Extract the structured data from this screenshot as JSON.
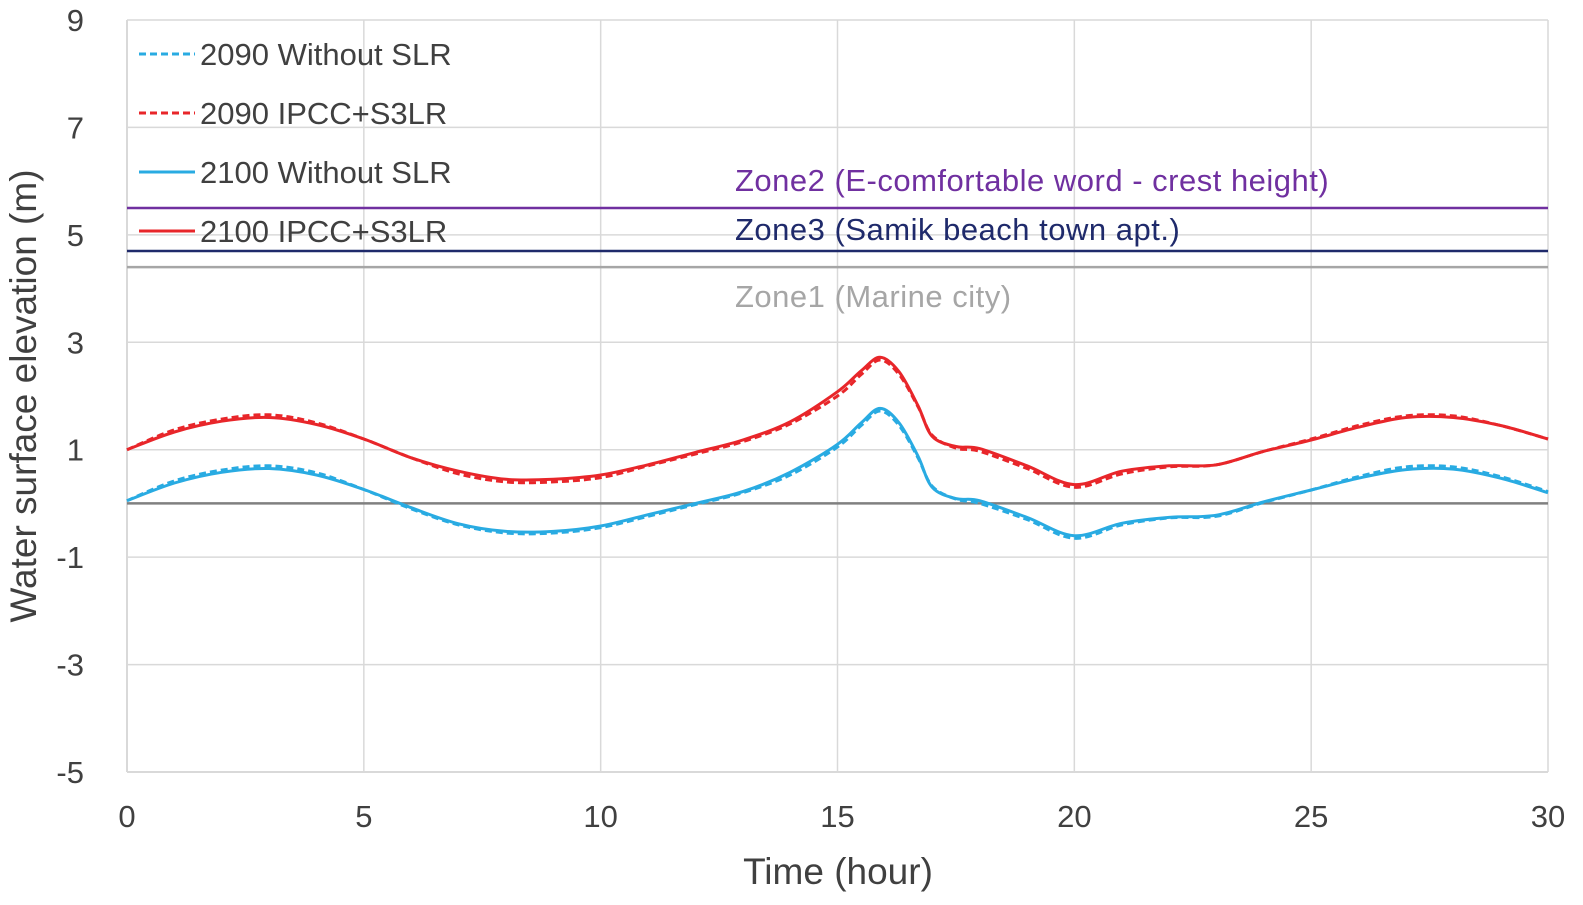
{
  "colors": {
    "cyan": "#29abe2",
    "red": "#e8262a",
    "purple": "#7030a0",
    "navy": "#1f2a6b",
    "gray_zone": "#a6a6a6",
    "baseline": "#808080",
    "grid": "#d9d9d9",
    "text": "#404040"
  },
  "chart_data": {
    "type": "line",
    "xlabel": "Time (hour)",
    "ylabel": "Water surface elevation (m)",
    "xlim": [
      0,
      30
    ],
    "ylim": [
      -5,
      9
    ],
    "xticks": [
      0,
      5,
      10,
      15,
      20,
      25,
      30
    ],
    "yticks": [
      -5,
      -3,
      -1,
      1,
      3,
      5,
      7,
      9
    ],
    "grid": true,
    "legend_position": "top-left",
    "series": [
      {
        "name": "2090 Without SLR",
        "style": "dashed",
        "color": "#29abe2",
        "x": [
          0,
          1,
          2,
          3,
          4,
          5,
          6,
          7,
          8,
          9,
          10,
          11,
          12,
          13,
          14,
          15,
          15.5,
          15.9,
          16.3,
          16.7,
          17,
          17.5,
          18,
          19,
          20,
          21,
          22,
          23,
          24,
          25,
          26,
          27,
          28,
          29,
          30
        ],
        "y": [
          0.05,
          0.42,
          0.62,
          0.7,
          0.57,
          0.26,
          -0.1,
          -0.4,
          -0.55,
          -0.55,
          -0.45,
          -0.24,
          -0.02,
          0.2,
          0.53,
          1.05,
          1.45,
          1.72,
          1.45,
          0.85,
          0.32,
          0.08,
          0.0,
          -0.3,
          -0.65,
          -0.4,
          -0.27,
          -0.24,
          0.02,
          0.25,
          0.5,
          0.68,
          0.68,
          0.5,
          0.22
        ]
      },
      {
        "name": "2090 IPCC+S3LR",
        "style": "dashed",
        "color": "#e8262a",
        "x": [
          0,
          1,
          2,
          3,
          4,
          5,
          6,
          7,
          8,
          9,
          10,
          11,
          12,
          13,
          14,
          15,
          15.5,
          15.9,
          16.3,
          16.7,
          17,
          17.5,
          18,
          19,
          20,
          21,
          22,
          23,
          24,
          25,
          26,
          27,
          28,
          29,
          30
        ],
        "y": [
          1.0,
          1.37,
          1.57,
          1.65,
          1.5,
          1.2,
          0.85,
          0.55,
          0.4,
          0.4,
          0.48,
          0.7,
          0.92,
          1.15,
          1.48,
          2.0,
          2.4,
          2.67,
          2.4,
          1.8,
          1.27,
          1.03,
          0.97,
          0.65,
          0.3,
          0.55,
          0.68,
          0.72,
          0.97,
          1.2,
          1.45,
          1.63,
          1.63,
          1.45,
          1.2
        ]
      },
      {
        "name": "2100 Without SLR",
        "style": "solid",
        "color": "#29abe2",
        "x": [
          0,
          1,
          2,
          3,
          4,
          5,
          6,
          7,
          8,
          9,
          10,
          11,
          12,
          13,
          14,
          15,
          15.5,
          15.9,
          16.3,
          16.7,
          17,
          17.5,
          18,
          19,
          20,
          21,
          22,
          23,
          24,
          25,
          26,
          27,
          28,
          29,
          30
        ],
        "y": [
          0.05,
          0.38,
          0.58,
          0.65,
          0.53,
          0.26,
          -0.08,
          -0.38,
          -0.52,
          -0.52,
          -0.42,
          -0.21,
          0.0,
          0.22,
          0.58,
          1.1,
          1.5,
          1.77,
          1.5,
          0.88,
          0.3,
          0.09,
          0.05,
          -0.26,
          -0.6,
          -0.37,
          -0.26,
          -0.22,
          0.03,
          0.25,
          0.47,
          0.63,
          0.64,
          0.47,
          0.2
        ]
      },
      {
        "name": "2100 IPCC+S3LR",
        "style": "solid",
        "color": "#e8262a",
        "x": [
          0,
          1,
          2,
          3,
          4,
          5,
          6,
          7,
          8,
          9,
          10,
          11,
          12,
          13,
          14,
          15,
          15.5,
          15.9,
          16.3,
          16.7,
          17,
          17.5,
          18,
          19,
          20,
          21,
          22,
          23,
          24,
          25,
          26,
          27,
          28,
          29,
          30
        ],
        "y": [
          1.0,
          1.33,
          1.53,
          1.6,
          1.47,
          1.2,
          0.85,
          0.6,
          0.45,
          0.45,
          0.53,
          0.72,
          0.95,
          1.18,
          1.52,
          2.08,
          2.47,
          2.72,
          2.45,
          1.82,
          1.25,
          1.06,
          1.02,
          0.7,
          0.35,
          0.6,
          0.7,
          0.72,
          0.97,
          1.18,
          1.42,
          1.6,
          1.6,
          1.45,
          1.2
        ]
      }
    ],
    "reference_lines": [
      {
        "name": "zone2",
        "y": 5.5,
        "color": "#7030a0",
        "label": "Zone2 (E-comfortable word - crest height)"
      },
      {
        "name": "zone3",
        "y": 4.7,
        "color": "#1f2a6b",
        "label": "Zone3 (Samik beach town apt.)"
      },
      {
        "name": "zone1",
        "y": 4.4,
        "color": "#a6a6a6",
        "label": "Zone1 (Marine city)"
      },
      {
        "name": "baseline",
        "y": 0,
        "color": "#808080",
        "label": ""
      }
    ]
  }
}
